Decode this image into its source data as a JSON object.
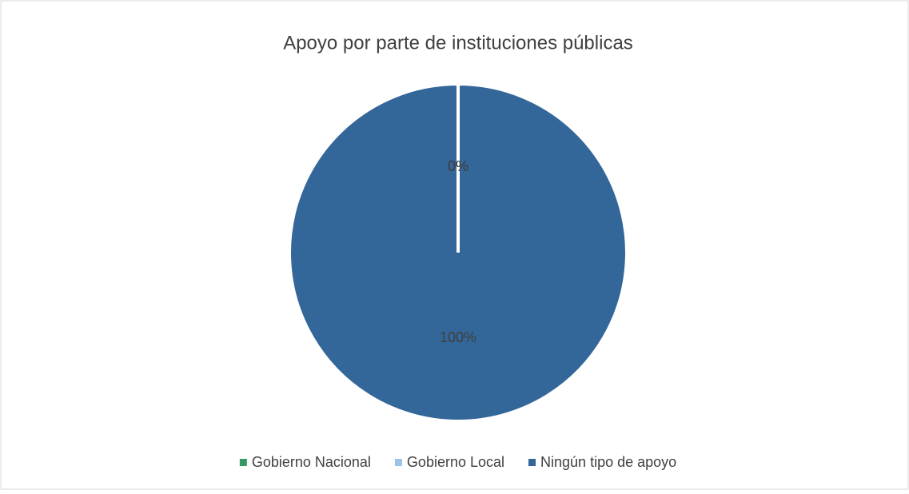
{
  "chart_data": {
    "type": "pie",
    "title": "Apoyo por parte de instituciones públicas",
    "categories": [
      "Gobierno Nacional",
      "Gobierno Local",
      "Ningún tipo de apoyo"
    ],
    "values": [
      0,
      0,
      100
    ],
    "value_labels": [
      "0%",
      "0%",
      "100%"
    ],
    "colors": [
      "#339966",
      "#9dc3e6",
      "#336699"
    ],
    "legend": "bottom"
  }
}
